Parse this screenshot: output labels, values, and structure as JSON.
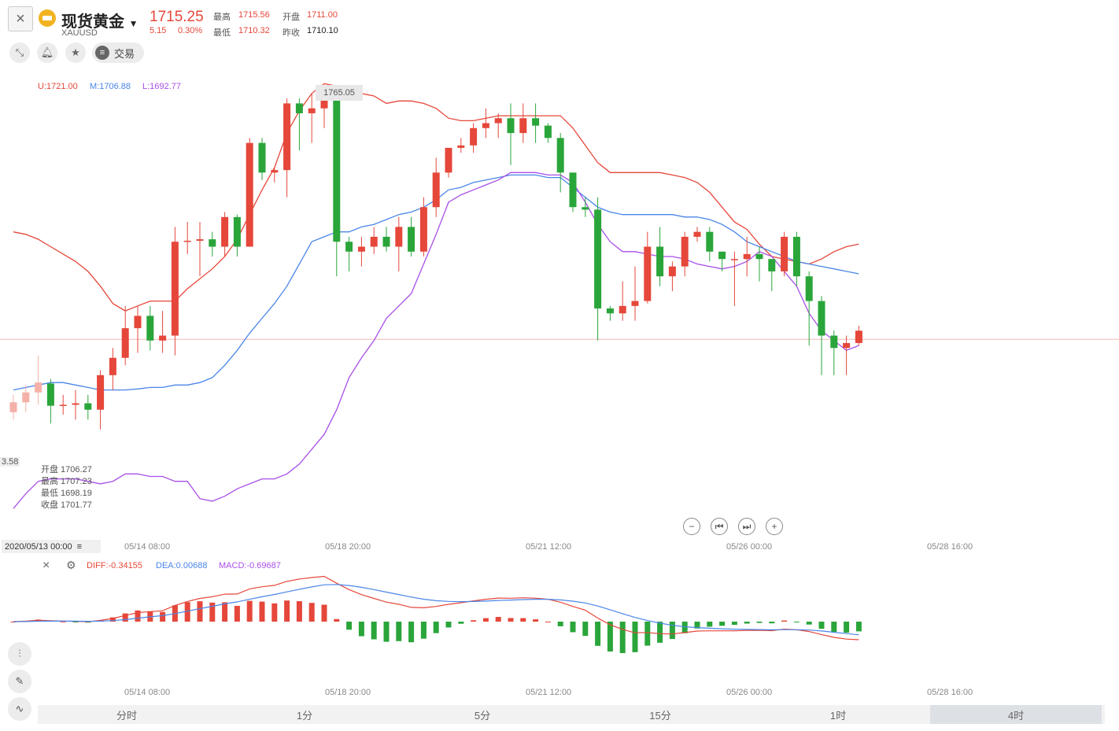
{
  "header": {
    "title": "现货黄金",
    "symbol": "XAUUSD",
    "price": "1715.25",
    "change": "5.15",
    "change_pct": "0.30%",
    "high_label": "最高",
    "high": "1715.56",
    "open_label": "开盘",
    "open": "1711.00",
    "low_label": "最低",
    "low": "1710.32",
    "prev_close_label": "昨收",
    "prev_close": "1710.10"
  },
  "toolbar": {
    "trade_label": "交易",
    "icons": [
      "expand-icon",
      "bell-icon",
      "star-icon",
      "trade-icon"
    ]
  },
  "bollinger": {
    "upper": "U:1721.00",
    "middle": "M:1706.88",
    "lower": "L:1692.77",
    "colors": {
      "upper": "#e5473a",
      "middle": "#4a86e8",
      "lower": "#a84fe8"
    }
  },
  "crosshair": {
    "max_label": "1765.05",
    "y_label": "3.58",
    "date": "2020/05/13 00:00"
  },
  "ohlc_info": {
    "open": "开盘 1706.27",
    "high": "最高 1707.23",
    "low": "最低 1698.19",
    "close": "收盘 1701.77"
  },
  "macd": {
    "diff": "DIFF:-0.34155",
    "dea": "DEA:0.00688",
    "macd": "MACD:-0.69687"
  },
  "x_axis": [
    "05/14 08:00",
    "05/18 20:00",
    "05/21 12:00",
    "05/26 00:00",
    "05/28 16:00"
  ],
  "periods": [
    {
      "label": "分时",
      "active": false
    },
    {
      "label": "1分",
      "active": false
    },
    {
      "label": "5分",
      "active": false
    },
    {
      "label": "15分",
      "active": false
    },
    {
      "label": "1时",
      "active": false
    },
    {
      "label": "4时",
      "active": true
    }
  ],
  "chart_data": {
    "type": "candlestick",
    "colors": {
      "up": "#e5473a",
      "down": "#2aa53a"
    },
    "price_range": [
      1682,
      1768
    ],
    "last_price_line": 1715.25,
    "candles": [
      [
        1700.5,
        1702.5,
        1704,
        1699
      ],
      [
        1702.5,
        1704.5,
        1706,
        1700.5
      ],
      [
        1704.5,
        1706.5,
        1712,
        1702
      ],
      [
        1706.3,
        1701.8,
        1707.2,
        1698.2
      ],
      [
        1701.8,
        1702,
        1704,
        1700
      ],
      [
        1702,
        1702.3,
        1705,
        1699
      ],
      [
        1702.3,
        1701,
        1704,
        1699
      ],
      [
        1701,
        1708,
        1709,
        1697
      ],
      [
        1708,
        1711.5,
        1713.5,
        1705
      ],
      [
        1711.5,
        1717.5,
        1722,
        1710
      ],
      [
        1717.5,
        1720,
        1722,
        1712.5
      ],
      [
        1720,
        1715,
        1722,
        1713
      ],
      [
        1715,
        1716,
        1721,
        1712.5
      ],
      [
        1716,
        1735,
        1738,
        1712
      ],
      [
        1735,
        1735.2,
        1739,
        1732.5
      ],
      [
        1735.2,
        1735.5,
        1739,
        1728
      ],
      [
        1735.5,
        1734,
        1737,
        1732
      ],
      [
        1734,
        1740,
        1741,
        1732
      ],
      [
        1740,
        1734,
        1740.5,
        1732
      ],
      [
        1734,
        1755,
        1756,
        1734
      ],
      [
        1755,
        1749,
        1756,
        1747.5
      ],
      [
        1749,
        1749.5,
        1750,
        1747
      ],
      [
        1749.5,
        1763,
        1764,
        1744
      ],
      [
        1763,
        1761,
        1764,
        1753.5
      ],
      [
        1761,
        1762,
        1765,
        1755
      ],
      [
        1762,
        1764,
        1764,
        1758
      ],
      [
        1764,
        1735,
        1765,
        1728
      ],
      [
        1735,
        1733,
        1736,
        1729
      ],
      [
        1733,
        1734,
        1736,
        1730
      ],
      [
        1734,
        1736,
        1738,
        1732.5
      ],
      [
        1736,
        1734,
        1738,
        1733
      ],
      [
        1734,
        1738,
        1740,
        1729
      ],
      [
        1738,
        1733,
        1740,
        1732
      ],
      [
        1733,
        1742,
        1744,
        1732
      ],
      [
        1742,
        1749,
        1752,
        1740
      ],
      [
        1749,
        1754,
        1754,
        1748
      ],
      [
        1754,
        1754.5,
        1756,
        1753
      ],
      [
        1754.5,
        1758,
        1759,
        1753
      ],
      [
        1758,
        1759,
        1762,
        1756
      ],
      [
        1759,
        1760,
        1761,
        1756
      ],
      [
        1760,
        1757,
        1763,
        1750.5
      ],
      [
        1757,
        1760,
        1763,
        1755
      ],
      [
        1760,
        1758.5,
        1763,
        1755
      ],
      [
        1758.5,
        1756,
        1759,
        1755
      ],
      [
        1756,
        1749,
        1757,
        1745
      ],
      [
        1749,
        1742,
        1748,
        1741
      ],
      [
        1742,
        1741.5,
        1744,
        1740
      ],
      [
        1741.5,
        1721.5,
        1744,
        1715
      ],
      [
        1721.5,
        1720.5,
        1722,
        1719
      ],
      [
        1720.5,
        1722,
        1727,
        1719
      ],
      [
        1722,
        1723,
        1730,
        1719
      ],
      [
        1723,
        1734,
        1737,
        1722.5
      ],
      [
        1734,
        1728,
        1738,
        1726
      ],
      [
        1728,
        1730,
        1731,
        1725
      ],
      [
        1730,
        1736,
        1737,
        1728
      ],
      [
        1736,
        1737,
        1738,
        1735
      ],
      [
        1737,
        1733,
        1738,
        1731
      ],
      [
        1733,
        1731.5,
        1733,
        1729
      ],
      [
        1731.5,
        1731.5,
        1733,
        1722
      ],
      [
        1731.5,
        1732.5,
        1736,
        1728
      ],
      [
        1732.5,
        1731.5,
        1734,
        1727
      ],
      [
        1731.5,
        1729,
        1731.5,
        1725
      ],
      [
        1729,
        1736,
        1737,
        1728
      ],
      [
        1736,
        1728,
        1737,
        1726
      ],
      [
        1728,
        1723,
        1729,
        1714
      ],
      [
        1723,
        1716,
        1724,
        1708
      ],
      [
        1716,
        1713.5,
        1717,
        1708
      ],
      [
        1713.5,
        1714.5,
        1716,
        1708
      ],
      [
        1714.5,
        1717,
        1718,
        1714
      ]
    ],
    "boll_upper": [
      1737,
      1736.5,
      1735.5,
      1734,
      1732.5,
      1731,
      1729,
      1726,
      1722.5,
      1721,
      1722,
      1723,
      1723,
      1723,
      1725.5,
      1727.5,
      1729.5,
      1732,
      1735.5,
      1740.5,
      1745.5,
      1750,
      1757,
      1761.5,
      1765,
      1767,
      1766.5,
      1765.5,
      1765,
      1764.5,
      1763,
      1763.5,
      1763.5,
      1763,
      1762,
      1760,
      1759.5,
      1759.5,
      1760,
      1760.5,
      1760.5,
      1760.5,
      1760.5,
      1760.5,
      1760.5,
      1758,
      1754.5,
      1751,
      1749,
      1749,
      1749,
      1749,
      1749,
      1748.5,
      1748,
      1747,
      1745,
      1742,
      1739,
      1737.5,
      1734.5,
      1732,
      1731.5,
      1731,
      1730.5,
      1731.5,
      1733,
      1734,
      1734.5
    ],
    "boll_middle": [
      1705,
      1705.5,
      1706,
      1706.5,
      1706.5,
      1706,
      1705.5,
      1705,
      1705,
      1705,
      1705.2,
      1705.5,
      1705.5,
      1706,
      1706,
      1706.5,
      1707.5,
      1710,
      1713,
      1716.5,
      1719.5,
      1722.5,
      1726,
      1730.5,
      1735,
      1736,
      1737,
      1737,
      1738,
      1738.5,
      1739.5,
      1740.5,
      1741,
      1742,
      1743.5,
      1745.5,
      1746,
      1747,
      1747.5,
      1748,
      1748.5,
      1748.5,
      1748.5,
      1748,
      1748,
      1746,
      1744,
      1742,
      1741,
      1740.5,
      1740.5,
      1740.5,
      1740.5,
      1740.5,
      1740,
      1740,
      1739.5,
      1738.5,
      1737,
      1735,
      1734,
      1733,
      1732,
      1731,
      1730.5,
      1730,
      1729.5,
      1729,
      1728.5
    ],
    "boll_lower": [
      1681,
      1684,
      1686.5,
      1687,
      1687,
      1687,
      1686.5,
      1686,
      1686.5,
      1688,
      1688,
      1687.5,
      1687.5,
      1686.5,
      1686.5,
      1683,
      1682.5,
      1683.5,
      1685,
      1686,
      1687,
      1687,
      1688,
      1690,
      1693,
      1696,
      1701,
      1707.5,
      1711.5,
      1715,
      1719.5,
      1722,
      1724.5,
      1730.5,
      1736.5,
      1743,
      1744.5,
      1745.5,
      1746.5,
      1747.5,
      1749,
      1749,
      1749,
      1748.5,
      1748.5,
      1747,
      1743,
      1738.5,
      1735,
      1733,
      1733,
      1732.5,
      1732,
      1732,
      1731.5,
      1730.5,
      1730,
      1729.5,
      1730,
      1731,
      1733,
      1732,
      1729,
      1726,
      1720.5,
      1717,
      1715,
      1713,
      1714
    ]
  }
}
